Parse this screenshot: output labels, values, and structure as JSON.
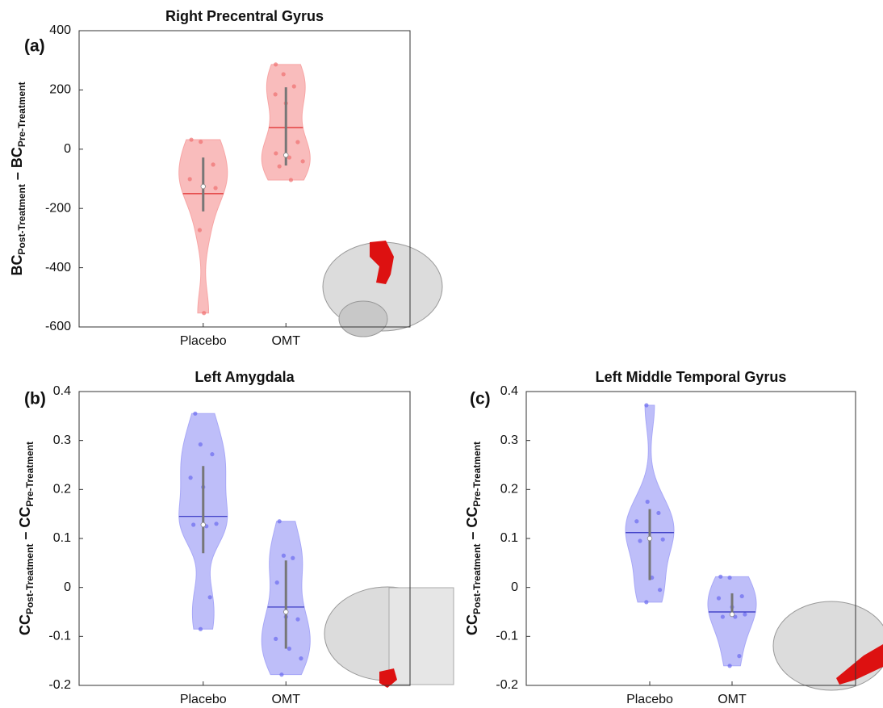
{
  "chart_data": [
    {
      "type": "violin",
      "panel": "(a)",
      "title": "Right Precentral Gyrus",
      "ylabel": [
        {
          "text": "BC"
        },
        {
          "text": "Post-Treatment",
          "sub": true
        },
        {
          "text": " – "
        },
        {
          "text": "BC"
        },
        {
          "text": "Pre-Treatment",
          "sub": true
        }
      ],
      "categories": [
        "Placebo",
        "OMT"
      ],
      "ylim": [
        -600,
        400
      ],
      "yticks": [
        -600,
        -400,
        -200,
        0,
        200,
        400
      ],
      "fill": "#f7a5a5",
      "point_color": "#f07070",
      "mean_color": "#e02828",
      "groups": [
        {
          "points": [
            32,
            25,
            -52,
            -101,
            -126,
            -131,
            -273,
            -553
          ],
          "mean": -150,
          "median": -126,
          "whisker": [
            -28,
            -210
          ]
        },
        {
          "points": [
            286,
            253,
            212,
            185,
            155,
            24,
            -14,
            -28,
            -41,
            -58,
            -104
          ],
          "mean": 73,
          "median": -20,
          "whisker": [
            209,
            -55
          ]
        }
      ]
    },
    {
      "type": "violin",
      "panel": "(b)",
      "title": "Left Amygdala",
      "ylabel": [
        {
          "text": "CC"
        },
        {
          "text": "Post-Treatment",
          "sub": true
        },
        {
          "text": " – "
        },
        {
          "text": "CC"
        },
        {
          "text": "Pre-Treatment",
          "sub": true
        }
      ],
      "categories": [
        "Placebo",
        "OMT"
      ],
      "ylim": [
        -0.2,
        0.4
      ],
      "yticks": [
        -0.2,
        -0.1,
        0,
        0.1,
        0.2,
        0.3,
        0.4
      ],
      "fill": "#a8a8f7",
      "point_color": "#6b6bf0",
      "mean_color": "#2f2fc0",
      "groups": [
        {
          "points": [
            0.355,
            0.292,
            0.272,
            0.224,
            0.205,
            0.13,
            0.128,
            0.125,
            -0.02,
            -0.085
          ],
          "mean": 0.145,
          "median": 0.128,
          "whisker": [
            0.248,
            0.07
          ]
        },
        {
          "points": [
            0.135,
            0.065,
            0.06,
            0.01,
            -0.06,
            -0.065,
            -0.105,
            -0.125,
            -0.145,
            -0.178
          ],
          "mean": -0.04,
          "median": -0.05,
          "whisker": [
            0.055,
            -0.125
          ]
        }
      ]
    },
    {
      "type": "violin",
      "panel": "(c)",
      "title": "Left Middle Temporal Gyrus",
      "ylabel": [
        {
          "text": "CC"
        },
        {
          "text": "Post-Treatment",
          "sub": true
        },
        {
          "text": " – "
        },
        {
          "text": "CC"
        },
        {
          "text": "Pre-Treatment",
          "sub": true
        }
      ],
      "categories": [
        "Placebo",
        "OMT"
      ],
      "ylim": [
        -0.2,
        0.4
      ],
      "yticks": [
        -0.2,
        -0.1,
        0,
        0.1,
        0.2,
        0.3,
        0.4
      ],
      "fill": "#a8a8f7",
      "point_color": "#6b6bf0",
      "mean_color": "#2f2fc0",
      "groups": [
        {
          "points": [
            0.372,
            0.175,
            0.152,
            0.135,
            0.1,
            0.098,
            0.095,
            0.02,
            -0.005,
            -0.03
          ],
          "mean": 0.112,
          "median": 0.1,
          "whisker": [
            0.16,
            0.015
          ]
        },
        {
          "points": [
            0.022,
            0.02,
            -0.018,
            -0.022,
            -0.04,
            -0.055,
            -0.06,
            -0.06,
            -0.14,
            -0.16
          ],
          "mean": -0.05,
          "median": -0.055,
          "whisker": [
            -0.012,
            -0.06
          ]
        }
      ]
    }
  ]
}
